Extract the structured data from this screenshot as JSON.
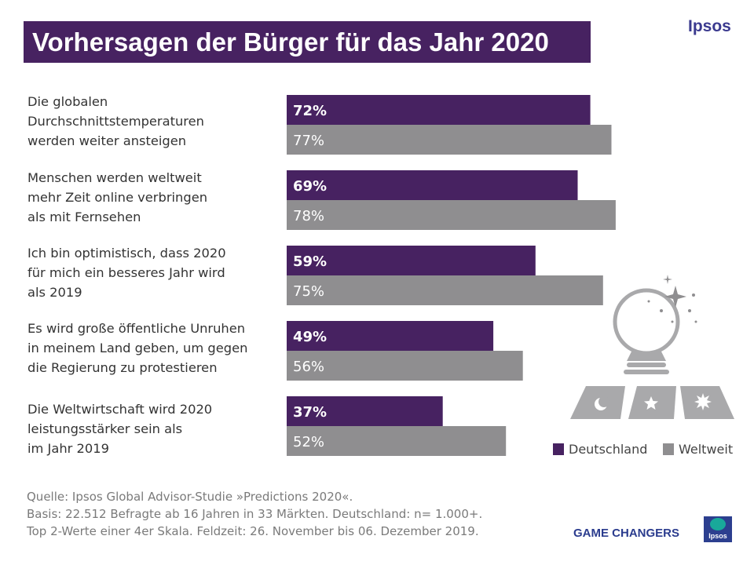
{
  "title": "Vorhersagen der Bürger für das Jahr 2020",
  "brand": "Ipsos",
  "questions": [
    "Die globalen\nDurchschnittstemperaturen\nwerden weiter ansteigen",
    "Menschen werden weltweit\nmehr Zeit online verbringen\nals mit Fernsehen",
    "Ich bin optimistisch, dass 2020\nfür mich ein besseres Jahr wird\nals 2019",
    "Es wird große öffentliche Unruhen\nin meinem Land geben, um gegen\ndie Regierung zu protestieren",
    "Die Weltwirtschaft wird 2020\nleistungsstärker sein als\nim Jahr 2019"
  ],
  "chart_data": {
    "type": "bar",
    "orientation": "horizontal",
    "categories": [
      "Die globalen Durchschnittstemperaturen werden weiter ansteigen",
      "Menschen werden weltweit mehr Zeit online verbringen als mit Fernsehen",
      "Ich bin optimistisch, dass 2020 für mich ein besseres Jahr wird als 2019",
      "Es wird große öffentliche Unruhen in meinem Land geben, um gegen die Regierung zu protestieren",
      "Die Weltwirtschaft wird 2020 leistungsstärker sein als im Jahr 2019"
    ],
    "series": [
      {
        "name": "Deutschland",
        "color": "#472261",
        "values": [
          72,
          69,
          59,
          49,
          37
        ],
        "labels": [
          "72%",
          "69%",
          "59%",
          "49%",
          "37%"
        ]
      },
      {
        "name": "Weltweit",
        "color": "#8f8e90",
        "values": [
          77,
          78,
          75,
          56,
          52
        ],
        "labels": [
          "77%",
          "78%",
          "75%",
          "56%",
          "52%"
        ]
      }
    ],
    "unit": "%",
    "xlim": [
      0,
      100
    ],
    "legend": "bottom-right"
  },
  "legend": {
    "germany": "Deutschland",
    "world": "Weltweit"
  },
  "source": {
    "line1": "Quelle: Ipsos Global Advisor-Studie »Predictions 2020«.",
    "line2": "Basis: 22.512 Befragte ab 16 Jahren in 33 Märkten. Deutschland: n= 1.000+.",
    "line3": "Top 2-Werte einer 4er Skala. Feldzeit: 26. November bis 06. Dezember 2019."
  },
  "footer": {
    "tagline": "GAME CHANGERS",
    "logo_text": "Ipsos"
  },
  "colors": {
    "accent": "#472261",
    "world": "#8f8e90",
    "brand_blue": "#2c3f8f"
  }
}
